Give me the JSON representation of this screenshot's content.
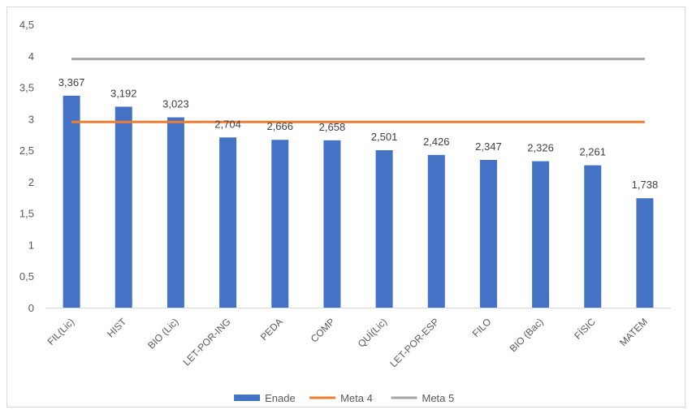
{
  "chart_data": {
    "type": "bar",
    "categories": [
      "FIL(Lic)",
      "HIST",
      "BIO (Lic)",
      "LET-POR-ING",
      "PEDA",
      "COMP",
      "QUÍ(Lic)",
      "LET-POR-ESP",
      "FILO",
      "BIO (Bac)",
      "FÍSIC",
      "MATEM"
    ],
    "series": [
      {
        "name": "Enade",
        "kind": "bar",
        "color": "#4472c4",
        "values": [
          3.367,
          3.192,
          3.023,
          2.704,
          2.666,
          2.658,
          2.501,
          2.426,
          2.347,
          2.326,
          2.261,
          1.738
        ],
        "labels": [
          "3,367",
          "3,192",
          "3,023",
          "2,704",
          "2,666",
          "2,658",
          "2,501",
          "2,426",
          "2,347",
          "2,326",
          "2,261",
          "1,738"
        ]
      },
      {
        "name": "Meta 4",
        "kind": "line",
        "color": "#ed7d31",
        "values": [
          2.95,
          2.95,
          2.95,
          2.95,
          2.95,
          2.95,
          2.95,
          2.95,
          2.95,
          2.95,
          2.95,
          2.95
        ]
      },
      {
        "name": "Meta 5",
        "kind": "line",
        "color": "#a5a5a5",
        "values": [
          3.95,
          3.95,
          3.95,
          3.95,
          3.95,
          3.95,
          3.95,
          3.95,
          3.95,
          3.95,
          3.95,
          3.95
        ]
      }
    ],
    "ylim": [
      0,
      4.5
    ],
    "yticks": [
      0,
      0.5,
      1,
      1.5,
      2,
      2.5,
      3,
      3.5,
      4,
      4.5
    ],
    "ytick_labels": [
      "0",
      "0,5",
      "1",
      "1,5",
      "2",
      "2,5",
      "3",
      "3,5",
      "4",
      "4,5"
    ],
    "grid": false,
    "legend_position": "bottom",
    "title": "",
    "xlabel": "",
    "ylabel": ""
  }
}
